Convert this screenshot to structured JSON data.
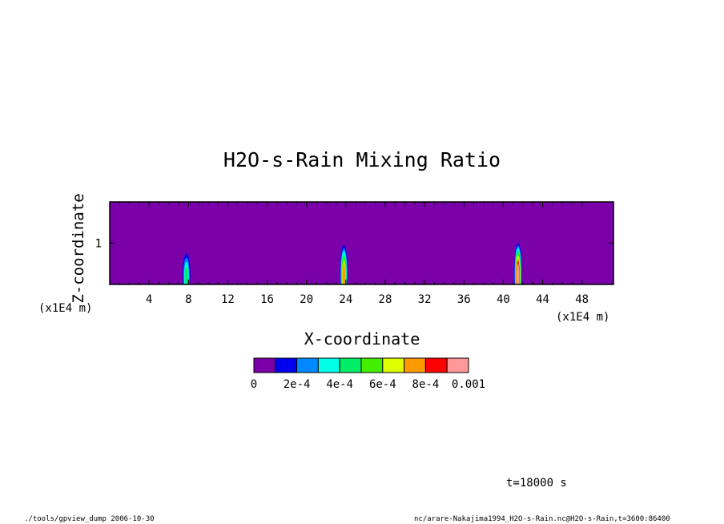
{
  "chart_data": {
    "type": "heatmap",
    "title": "H2O-s-Rain Mixing Ratio",
    "xlabel": "X-coordinate",
    "ylabel": "Z-coordinate",
    "x_unit": "(x1E4 m)",
    "y_unit": "(x1E4 m)",
    "xlim": [
      0,
      51.2
    ],
    "ylim": [
      0,
      2
    ],
    "x_ticks": [
      "4",
      "8",
      "12",
      "16",
      "20",
      "24",
      "28",
      "32",
      "36",
      "40",
      "44",
      "48"
    ],
    "y_ticks": [
      "1"
    ],
    "background_value": 0,
    "colorbar": {
      "colors": [
        "#7a00aa",
        "#0000ee",
        "#0088ff",
        "#00ffe6",
        "#00ee66",
        "#44ee00",
        "#ddff00",
        "#ff9900",
        "#ff0000",
        "#ff9999"
      ],
      "labels": [
        "0",
        "2e-4",
        "4e-4",
        "6e-4",
        "8e-4",
        "0.001"
      ]
    },
    "features": [
      {
        "x": 7.8,
        "z_top": 0.75,
        "max_value": 0.0004
      },
      {
        "x": 23.8,
        "z_top": 0.95,
        "max_value": 0.0007
      },
      {
        "x": 41.5,
        "z_top": 1.0,
        "max_value": 0.001
      }
    ]
  },
  "footer": {
    "time": "t=18000 s",
    "left": "./tools/gpview_dump  2006-10-30",
    "right": "nc/arare-Nakajima1994_H2O-s-Rain.nc@H2O-s-Rain,t=3600:86400"
  }
}
